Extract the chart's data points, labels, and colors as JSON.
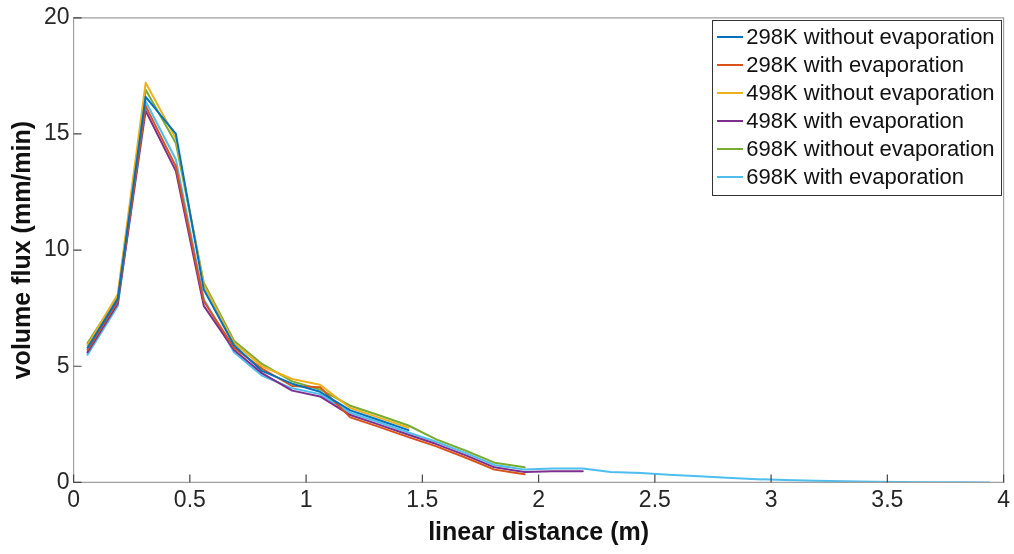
{
  "chart_data": {
    "type": "line",
    "xlabel": "linear distance (m)",
    "ylabel": "volume flux (mm/min)",
    "x": [
      0.06,
      0.19,
      0.31,
      0.44,
      0.56,
      0.69,
      0.81,
      0.94,
      1.06,
      1.19,
      1.31,
      1.44,
      1.56,
      1.69,
      1.81,
      1.94,
      2.06,
      2.19,
      2.31,
      2.44,
      2.56,
      2.69,
      2.81,
      2.94,
      3.06,
      3.19,
      3.31,
      3.44,
      3.56,
      3.69,
      3.81,
      3.94
    ],
    "xlim": [
      0,
      4
    ],
    "xticks": [
      0,
      0.5,
      1,
      1.5,
      2,
      2.5,
      3,
      3.5,
      4
    ],
    "ylim": [
      0,
      20
    ],
    "yticks": [
      0,
      5,
      10,
      15,
      20
    ],
    "grid": false,
    "legend": "top right",
    "marker": "none",
    "line_style": "solid",
    "series": [
      {
        "name": "298K without evaporation",
        "color": "#0072bd",
        "values": [
          5.8,
          7.9,
          16.6,
          15.0,
          8.3,
          5.9,
          4.8,
          4.25,
          3.9,
          3.1,
          2.7,
          2.25,
          null,
          null,
          null,
          null,
          null,
          null,
          null,
          null,
          null,
          null,
          null,
          null,
          null,
          null,
          null,
          null,
          null,
          null,
          null,
          null
        ]
      },
      {
        "name": "298K with evaporation",
        "color": "#d95319",
        "values": [
          5.7,
          7.8,
          16.2,
          13.6,
          7.8,
          5.8,
          4.9,
          4.15,
          4.1,
          2.8,
          2.4,
          1.95,
          1.55,
          1.05,
          0.55,
          0.35,
          null,
          null,
          null,
          null,
          null,
          null,
          null,
          null,
          null,
          null,
          null,
          null,
          null,
          null,
          null,
          null
        ]
      },
      {
        "name": "498K without evaporation",
        "color": "#edb120",
        "values": [
          5.9,
          8.1,
          17.2,
          14.8,
          8.5,
          6.0,
          5.0,
          4.45,
          4.2,
          3.2,
          2.8,
          2.35,
          null,
          null,
          null,
          null,
          null,
          null,
          null,
          null,
          null,
          null,
          null,
          null,
          null,
          null,
          null,
          null,
          null,
          null,
          null,
          null
        ]
      },
      {
        "name": "498K with evaporation",
        "color": "#7e2f8e",
        "values": [
          5.6,
          7.7,
          16.0,
          13.4,
          7.6,
          5.7,
          4.7,
          3.95,
          3.7,
          2.9,
          2.5,
          2.05,
          1.65,
          1.15,
          0.65,
          0.45,
          0.48,
          0.48,
          null,
          null,
          null,
          null,
          null,
          null,
          null,
          null,
          null,
          null,
          null,
          null,
          null,
          null
        ]
      },
      {
        "name": "698K without evaporation",
        "color": "#77ac30",
        "values": [
          6.0,
          8.0,
          16.9,
          14.6,
          8.6,
          6.1,
          5.1,
          4.35,
          4.0,
          3.3,
          2.9,
          2.45,
          1.85,
          1.35,
          0.85,
          0.65,
          null,
          null,
          null,
          null,
          null,
          null,
          null,
          null,
          null,
          null,
          null,
          null,
          null,
          null,
          null,
          null
        ]
      },
      {
        "name": "698K with evaporation",
        "color": "#4dbeee",
        "values": [
          5.5,
          7.6,
          16.4,
          13.9,
          7.9,
          5.6,
          4.6,
          4.05,
          3.8,
          3.0,
          2.6,
          2.15,
          1.75,
          1.25,
          0.75,
          0.55,
          0.6,
          0.6,
          0.45,
          0.4,
          0.33,
          0.27,
          0.2,
          0.14,
          0.1,
          0.07,
          0.05,
          0.03,
          0.02,
          0.01,
          0.01,
          0
        ]
      }
    ]
  }
}
